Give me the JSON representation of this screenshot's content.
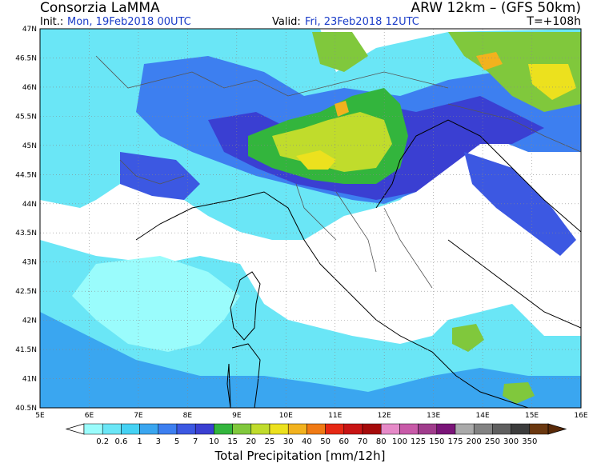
{
  "header": {
    "org": "Consorzia LaMMA",
    "model": "ARW 12km  –  (GFS 50km)",
    "init_label": "Init.:",
    "init_value": "Mon, 19Feb2018 00UTC",
    "valid_label": "Valid:",
    "valid_value": "Fri, 23Feb2018 12UTC",
    "lead_time": "T=+108h"
  },
  "colors": {
    "text": "#000000",
    "accent_blue": "#1a3cc8",
    "land": "#ffffff"
  },
  "map": {
    "lat_labels": [
      "47N",
      "46.5N",
      "46N",
      "45.5N",
      "45N",
      "44.5N",
      "44N",
      "43.5N",
      "43N",
      "42.5N",
      "42N",
      "41.5N",
      "41N",
      "40.5N"
    ],
    "lon_labels": [
      "5E",
      "6E",
      "7E",
      "8E",
      "9E",
      "10E",
      "11E",
      "12E",
      "13E",
      "14E",
      "15E",
      "16E"
    ]
  },
  "colorbar": {
    "title": "Total Precipitation [mm/12h]",
    "labels": [
      "0.2",
      "0.6",
      "1",
      "3",
      "5",
      "7",
      "10",
      "15",
      "20",
      "25",
      "30",
      "40",
      "50",
      "60",
      "70",
      "80",
      "100",
      "125",
      "150",
      "175",
      "200",
      "250",
      "300",
      "350"
    ],
    "colors": [
      "#9afcfc",
      "#6ae6f6",
      "#45d2f4",
      "#3aa6f0",
      "#3d7ff0",
      "#3c58e2",
      "#3a3fd2",
      "#33b53d",
      "#80c83c",
      "#c0dc2c",
      "#ece11e",
      "#f2b21e",
      "#f07a14",
      "#e62814",
      "#c81414",
      "#a50a0a",
      "#e68ac8",
      "#c85aa8",
      "#a03c8c",
      "#7a1478",
      "#aaaaaa",
      "#828282",
      "#5f5f5f",
      "#3c3c3c",
      "#6b3810"
    ]
  }
}
